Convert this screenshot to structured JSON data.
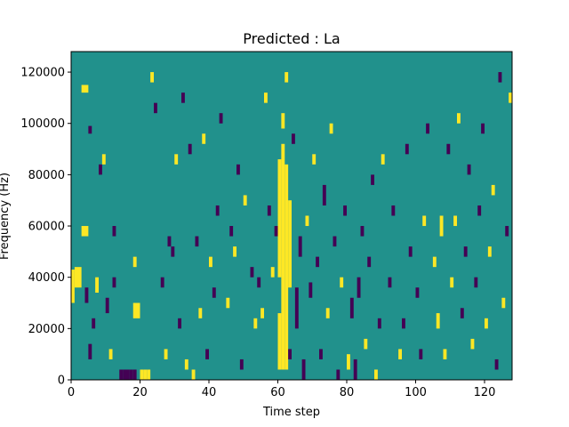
{
  "chart_data": {
    "type": "heatmap",
    "title": "Predicted : La",
    "xlabel": "Time step",
    "ylabel": "Frequency (Hz)",
    "xlim": [
      0,
      128
    ],
    "ylim": [
      0,
      128000
    ],
    "xticks": [
      0,
      20,
      40,
      60,
      80,
      100,
      120
    ],
    "yticks": [
      0,
      20000,
      40000,
      60000,
      80000,
      100000,
      120000
    ],
    "grid": false,
    "background_value": 0,
    "colors": {
      "background": "#21918c",
      "high": "#fde725",
      "low": "#440154"
    },
    "bin_height_hz": 4000,
    "cells": [
      {
        "x": [
          0,
          1
        ],
        "y": [
          30000,
          43000
        ],
        "v": 1
      },
      {
        "x": [
          1,
          3
        ],
        "y": [
          36000,
          44000
        ],
        "v": 1
      },
      {
        "x": [
          3,
          5
        ],
        "y": [
          56000,
          60000
        ],
        "v": 1
      },
      {
        "x": [
          3,
          5
        ],
        "y": [
          112000,
          115000
        ],
        "v": 1
      },
      {
        "x": [
          4,
          5
        ],
        "y": [
          30000,
          36000
        ],
        "v": -1
      },
      {
        "x": [
          5,
          6
        ],
        "y": [
          8000,
          14000
        ],
        "v": -1
      },
      {
        "x": [
          6,
          7
        ],
        "y": [
          20000,
          24000
        ],
        "v": -1
      },
      {
        "x": [
          5,
          6
        ],
        "y": [
          96000,
          99000
        ],
        "v": -1
      },
      {
        "x": [
          7,
          8
        ],
        "y": [
          34000,
          40000
        ],
        "v": 1
      },
      {
        "x": [
          8,
          9
        ],
        "y": [
          80000,
          84000
        ],
        "v": -1
      },
      {
        "x": [
          9,
          10
        ],
        "y": [
          84000,
          88000
        ],
        "v": 1
      },
      {
        "x": [
          10,
          11
        ],
        "y": [
          26000,
          32000
        ],
        "v": -1
      },
      {
        "x": [
          11,
          12
        ],
        "y": [
          8000,
          12000
        ],
        "v": 1
      },
      {
        "x": [
          12,
          13
        ],
        "y": [
          36000,
          40000
        ],
        "v": -1
      },
      {
        "x": [
          12,
          13
        ],
        "y": [
          56000,
          60000
        ],
        "v": -1
      },
      {
        "x": [
          14,
          15
        ],
        "y": [
          0,
          4000
        ],
        "v": -1
      },
      {
        "x": [
          15,
          16
        ],
        "y": [
          0,
          4000
        ],
        "v": -1
      },
      {
        "x": [
          16,
          17
        ],
        "y": [
          0,
          4000
        ],
        "v": -1
      },
      {
        "x": [
          17,
          18
        ],
        "y": [
          0,
          4000
        ],
        "v": -1
      },
      {
        "x": [
          18,
          19
        ],
        "y": [
          0,
          4000
        ],
        "v": -1
      },
      {
        "x": [
          18,
          19
        ],
        "y": [
          44000,
          48000
        ],
        "v": 1
      },
      {
        "x": [
          18,
          20
        ],
        "y": [
          24000,
          30000
        ],
        "v": 1
      },
      {
        "x": [
          20,
          21
        ],
        "y": [
          0,
          4000
        ],
        "v": 1
      },
      {
        "x": [
          21,
          22
        ],
        "y": [
          0,
          4000
        ],
        "v": 1
      },
      {
        "x": [
          22,
          23
        ],
        "y": [
          0,
          4000
        ],
        "v": 1
      },
      {
        "x": [
          23,
          24
        ],
        "y": [
          116000,
          120000
        ],
        "v": 1
      },
      {
        "x": [
          24,
          25
        ],
        "y": [
          104000,
          108000
        ],
        "v": -1
      },
      {
        "x": [
          26,
          27
        ],
        "y": [
          36000,
          40000
        ],
        "v": -1
      },
      {
        "x": [
          27,
          28
        ],
        "y": [
          8000,
          12000
        ],
        "v": 1
      },
      {
        "x": [
          28,
          29
        ],
        "y": [
          52000,
          56000
        ],
        "v": -1
      },
      {
        "x": [
          29,
          30
        ],
        "y": [
          48000,
          52000
        ],
        "v": -1
      },
      {
        "x": [
          30,
          31
        ],
        "y": [
          84000,
          88000
        ],
        "v": 1
      },
      {
        "x": [
          31,
          32
        ],
        "y": [
          20000,
          24000
        ],
        "v": -1
      },
      {
        "x": [
          32,
          33
        ],
        "y": [
          108000,
          112000
        ],
        "v": -1
      },
      {
        "x": [
          33,
          34
        ],
        "y": [
          4000,
          8000
        ],
        "v": 1
      },
      {
        "x": [
          34,
          35
        ],
        "y": [
          88000,
          92000
        ],
        "v": -1
      },
      {
        "x": [
          35,
          36
        ],
        "y": [
          0,
          4000
        ],
        "v": 1
      },
      {
        "x": [
          36,
          37
        ],
        "y": [
          52000,
          56000
        ],
        "v": -1
      },
      {
        "x": [
          37,
          38
        ],
        "y": [
          24000,
          28000
        ],
        "v": 1
      },
      {
        "x": [
          38,
          39
        ],
        "y": [
          92000,
          96000
        ],
        "v": 1
      },
      {
        "x": [
          39,
          40
        ],
        "y": [
          8000,
          12000
        ],
        "v": -1
      },
      {
        "x": [
          40,
          41
        ],
        "y": [
          44000,
          48000
        ],
        "v": 1
      },
      {
        "x": [
          41,
          42
        ],
        "y": [
          32000,
          36000
        ],
        "v": -1
      },
      {
        "x": [
          42,
          43
        ],
        "y": [
          64000,
          68000
        ],
        "v": -1
      },
      {
        "x": [
          43,
          44
        ],
        "y": [
          100000,
          104000
        ],
        "v": -1
      },
      {
        "x": [
          45,
          46
        ],
        "y": [
          28000,
          32000
        ],
        "v": 1
      },
      {
        "x": [
          46,
          47
        ],
        "y": [
          56000,
          60000
        ],
        "v": -1
      },
      {
        "x": [
          47,
          48
        ],
        "y": [
          48000,
          52000
        ],
        "v": 1
      },
      {
        "x": [
          48,
          49
        ],
        "y": [
          80000,
          84000
        ],
        "v": -1
      },
      {
        "x": [
          49,
          50
        ],
        "y": [
          4000,
          8000
        ],
        "v": -1
      },
      {
        "x": [
          50,
          51
        ],
        "y": [
          68000,
          72000
        ],
        "v": 1
      },
      {
        "x": [
          52,
          53
        ],
        "y": [
          40000,
          44000
        ],
        "v": -1
      },
      {
        "x": [
          53,
          54
        ],
        "y": [
          20000,
          24000
        ],
        "v": 1
      },
      {
        "x": [
          54,
          55
        ],
        "y": [
          36000,
          40000
        ],
        "v": -1
      },
      {
        "x": [
          55,
          56
        ],
        "y": [
          24000,
          28000
        ],
        "v": 1
      },
      {
        "x": [
          56,
          57
        ],
        "y": [
          108000,
          112000
        ],
        "v": 1
      },
      {
        "x": [
          57,
          58
        ],
        "y": [
          64000,
          68000
        ],
        "v": -1
      },
      {
        "x": [
          58,
          59
        ],
        "y": [
          40000,
          44000
        ],
        "v": 1
      },
      {
        "x": [
          59,
          60
        ],
        "y": [
          56000,
          60000
        ],
        "v": -1
      },
      {
        "x": [
          60,
          61
        ],
        "y": [
          4000,
          26000
        ],
        "v": 1
      },
      {
        "x": [
          60,
          61
        ],
        "y": [
          40000,
          86000
        ],
        "v": 1
      },
      {
        "x": [
          61,
          62
        ],
        "y": [
          4000,
          92000
        ],
        "v": 1
      },
      {
        "x": [
          62,
          63
        ],
        "y": [
          4000,
          84000
        ],
        "v": 1
      },
      {
        "x": [
          63,
          64
        ],
        "y": [
          36000,
          70000
        ],
        "v": 1
      },
      {
        "x": [
          61,
          62
        ],
        "y": [
          98000,
          104000
        ],
        "v": 1
      },
      {
        "x": [
          62,
          63
        ],
        "y": [
          116000,
          120000
        ],
        "v": 1
      },
      {
        "x": [
          63,
          64
        ],
        "y": [
          8000,
          12000
        ],
        "v": -1
      },
      {
        "x": [
          64,
          65
        ],
        "y": [
          92000,
          96000
        ],
        "v": -1
      },
      {
        "x": [
          65,
          66
        ],
        "y": [
          20000,
          36000
        ],
        "v": -1
      },
      {
        "x": [
          66,
          67
        ],
        "y": [
          48000,
          56000
        ],
        "v": -1
      },
      {
        "x": [
          67,
          68
        ],
        "y": [
          0,
          8000
        ],
        "v": -1
      },
      {
        "x": [
          68,
          69
        ],
        "y": [
          60000,
          64000
        ],
        "v": 1
      },
      {
        "x": [
          69,
          70
        ],
        "y": [
          32000,
          38000
        ],
        "v": -1
      },
      {
        "x": [
          70,
          71
        ],
        "y": [
          84000,
          88000
        ],
        "v": 1
      },
      {
        "x": [
          71,
          72
        ],
        "y": [
          44000,
          48000
        ],
        "v": -1
      },
      {
        "x": [
          72,
          73
        ],
        "y": [
          8000,
          12000
        ],
        "v": -1
      },
      {
        "x": [
          73,
          74
        ],
        "y": [
          68000,
          76000
        ],
        "v": -1
      },
      {
        "x": [
          74,
          75
        ],
        "y": [
          24000,
          28000
        ],
        "v": 1
      },
      {
        "x": [
          75,
          76
        ],
        "y": [
          96000,
          100000
        ],
        "v": 1
      },
      {
        "x": [
          76,
          77
        ],
        "y": [
          52000,
          56000
        ],
        "v": -1
      },
      {
        "x": [
          77,
          78
        ],
        "y": [
          0,
          4000
        ],
        "v": -1
      },
      {
        "x": [
          78,
          79
        ],
        "y": [
          36000,
          40000
        ],
        "v": 1
      },
      {
        "x": [
          79,
          80
        ],
        "y": [
          64000,
          68000
        ],
        "v": -1
      },
      {
        "x": [
          80,
          81
        ],
        "y": [
          4000,
          10000
        ],
        "v": 1
      },
      {
        "x": [
          81,
          82
        ],
        "y": [
          24000,
          32000
        ],
        "v": -1
      },
      {
        "x": [
          82,
          83
        ],
        "y": [
          0,
          8000
        ],
        "v": -1
      },
      {
        "x": [
          83,
          84
        ],
        "y": [
          32000,
          40000
        ],
        "v": -1
      },
      {
        "x": [
          84,
          85
        ],
        "y": [
          56000,
          60000
        ],
        "v": -1
      },
      {
        "x": [
          85,
          86
        ],
        "y": [
          12000,
          16000
        ],
        "v": 1
      },
      {
        "x": [
          86,
          87
        ],
        "y": [
          44000,
          48000
        ],
        "v": -1
      },
      {
        "x": [
          87,
          88
        ],
        "y": [
          76000,
          80000
        ],
        "v": -1
      },
      {
        "x": [
          88,
          89
        ],
        "y": [
          0,
          4000
        ],
        "v": 1
      },
      {
        "x": [
          89,
          90
        ],
        "y": [
          20000,
          24000
        ],
        "v": -1
      },
      {
        "x": [
          90,
          91
        ],
        "y": [
          84000,
          88000
        ],
        "v": 1
      },
      {
        "x": [
          92,
          93
        ],
        "y": [
          36000,
          40000
        ],
        "v": -1
      },
      {
        "x": [
          93,
          94
        ],
        "y": [
          64000,
          68000
        ],
        "v": -1
      },
      {
        "x": [
          95,
          96
        ],
        "y": [
          8000,
          12000
        ],
        "v": 1
      },
      {
        "x": [
          96,
          97
        ],
        "y": [
          20000,
          24000
        ],
        "v": -1
      },
      {
        "x": [
          97,
          98
        ],
        "y": [
          88000,
          92000
        ],
        "v": -1
      },
      {
        "x": [
          98,
          99
        ],
        "y": [
          48000,
          52000
        ],
        "v": -1
      },
      {
        "x": [
          100,
          101
        ],
        "y": [
          32000,
          36000
        ],
        "v": -1
      },
      {
        "x": [
          101,
          102
        ],
        "y": [
          8000,
          12000
        ],
        "v": -1
      },
      {
        "x": [
          102,
          103
        ],
        "y": [
          60000,
          64000
        ],
        "v": 1
      },
      {
        "x": [
          103,
          104
        ],
        "y": [
          96000,
          100000
        ],
        "v": -1
      },
      {
        "x": [
          105,
          106
        ],
        "y": [
          44000,
          48000
        ],
        "v": 1
      },
      {
        "x": [
          106,
          107
        ],
        "y": [
          20000,
          26000
        ],
        "v": 1
      },
      {
        "x": [
          107,
          108
        ],
        "y": [
          56000,
          64000
        ],
        "v": 1
      },
      {
        "x": [
          108,
          109
        ],
        "y": [
          8000,
          12000
        ],
        "v": 1
      },
      {
        "x": [
          109,
          110
        ],
        "y": [
          88000,
          92000
        ],
        "v": -1
      },
      {
        "x": [
          110,
          111
        ],
        "y": [
          36000,
          40000
        ],
        "v": 1
      },
      {
        "x": [
          111,
          112
        ],
        "y": [
          60000,
          64000
        ],
        "v": 1
      },
      {
        "x": [
          112,
          113
        ],
        "y": [
          100000,
          104000
        ],
        "v": 1
      },
      {
        "x": [
          113,
          114
        ],
        "y": [
          24000,
          28000
        ],
        "v": -1
      },
      {
        "x": [
          114,
          115
        ],
        "y": [
          48000,
          52000
        ],
        "v": -1
      },
      {
        "x": [
          115,
          116
        ],
        "y": [
          80000,
          84000
        ],
        "v": -1
      },
      {
        "x": [
          116,
          117
        ],
        "y": [
          12000,
          16000
        ],
        "v": 1
      },
      {
        "x": [
          117,
          118
        ],
        "y": [
          36000,
          40000
        ],
        "v": -1
      },
      {
        "x": [
          118,
          119
        ],
        "y": [
          64000,
          68000
        ],
        "v": -1
      },
      {
        "x": [
          119,
          120
        ],
        "y": [
          96000,
          100000
        ],
        "v": -1
      },
      {
        "x": [
          120,
          121
        ],
        "y": [
          20000,
          24000
        ],
        "v": 1
      },
      {
        "x": [
          121,
          122
        ],
        "y": [
          48000,
          52000
        ],
        "v": 1
      },
      {
        "x": [
          122,
          123
        ],
        "y": [
          72000,
          76000
        ],
        "v": 1
      },
      {
        "x": [
          123,
          124
        ],
        "y": [
          4000,
          8000
        ],
        "v": -1
      },
      {
        "x": [
          124,
          125
        ],
        "y": [
          116000,
          120000
        ],
        "v": -1
      },
      {
        "x": [
          125,
          126
        ],
        "y": [
          28000,
          32000
        ],
        "v": 1
      },
      {
        "x": [
          126,
          127
        ],
        "y": [
          56000,
          60000
        ],
        "v": -1
      },
      {
        "x": [
          127,
          128
        ],
        "y": [
          108000,
          112000
        ],
        "v": 1
      }
    ]
  }
}
